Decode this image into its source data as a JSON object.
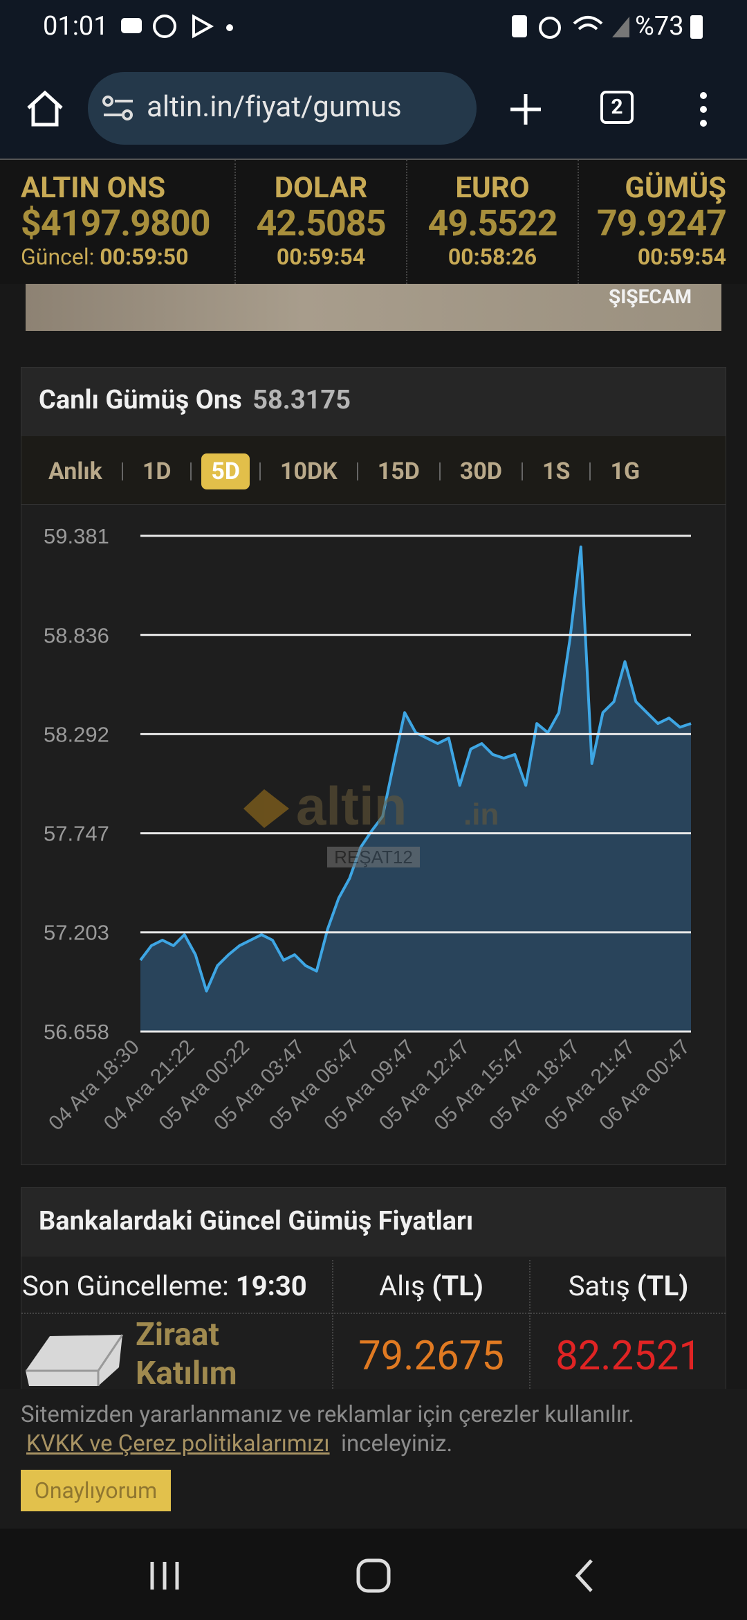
{
  "status_bar": {
    "time": "01:01",
    "battery": "%73"
  },
  "browser": {
    "url": "altin.in/fiyat/gumus",
    "tabs": "2"
  },
  "ticker": [
    {
      "name": "ALTIN ONS",
      "price": "$4197.9800",
      "prefix": "Güncel:",
      "time": "00:59:50"
    },
    {
      "name": "DOLAR",
      "price": "42.5085",
      "time": "00:59:54"
    },
    {
      "name": "EURO",
      "price": "49.5522",
      "time": "00:58:26"
    },
    {
      "name": "GÜMÜŞ",
      "price": "79.9247",
      "time": "00:59:54"
    }
  ],
  "banner": {
    "brand": "ŞIŞECAM"
  },
  "card": {
    "title": "Canlı Gümüş Ons",
    "value": "58.3175",
    "tabs": [
      "Anlık",
      "1D",
      "5D",
      "10DK",
      "15D",
      "30D",
      "1S",
      "1G"
    ],
    "active_tab": 2,
    "watermark": "altin",
    "watermark_suffix": ".in",
    "watermark_user": "REŞAT12"
  },
  "chart_data": {
    "type": "area",
    "categories": [
      "04 Ara 18:30",
      null,
      null,
      null,
      null,
      "04 Ara 21:22",
      null,
      null,
      null,
      null,
      "05 Ara 00:22",
      null,
      null,
      null,
      null,
      "05 Ara 03:47",
      null,
      null,
      null,
      null,
      "05 Ara 06:47",
      null,
      null,
      null,
      null,
      "05 Ara 09:47",
      null,
      null,
      null,
      null,
      "05 Ara 12:47",
      null,
      null,
      null,
      null,
      "05 Ara 15:47",
      null,
      null,
      null,
      null,
      "05 Ara 18:47",
      null,
      null,
      null,
      null,
      "05 Ara 21:47",
      null,
      null,
      null,
      null,
      "06 Ara 00:47"
    ],
    "series": [
      {
        "color": "#3ea6e4",
        "fill": "#2a4862",
        "values": [
          57.05,
          57.13,
          57.16,
          57.13,
          57.19,
          57.08,
          56.88,
          57.02,
          57.08,
          57.13,
          57.16,
          57.19,
          57.16,
          57.05,
          57.08,
          57.02,
          56.99,
          57.22,
          57.39,
          57.5,
          57.67,
          57.76,
          57.84,
          58.13,
          58.41,
          58.3,
          58.27,
          58.24,
          58.27,
          58.01,
          58.21,
          58.24,
          58.18,
          58.16,
          58.18,
          58.01,
          58.35,
          58.3,
          58.41,
          58.81,
          59.32,
          58.13,
          58.41,
          58.47,
          58.69,
          58.47,
          58.41,
          58.35,
          58.38,
          58.33,
          58.35
        ]
      }
    ],
    "ylim": [
      56.658,
      59.381
    ],
    "yticks": [
      56.658,
      57.203,
      57.747,
      58.292,
      58.836,
      59.381
    ],
    "grid": true
  },
  "bank_table": {
    "title": "Bankalardaki Güncel Gümüş Fiyatları",
    "header": {
      "label": "Son Güncelleme:",
      "time": "19:30",
      "buy": "Alış",
      "buy_unit": "(TL)",
      "sell": "Satış",
      "sell_unit": "(TL)"
    },
    "rows": [
      {
        "name": "Ziraat Katılım",
        "buy": "79.2675",
        "sell": "82.2521"
      }
    ]
  },
  "cookie": {
    "text": "Sitemizden yararlanmanız ve reklamlar için çerezler kullanılır.",
    "link": "KVKK ve Çerez politikalarımızı",
    "after": "inceleyiniz.",
    "button": "Onaylıyorum"
  }
}
